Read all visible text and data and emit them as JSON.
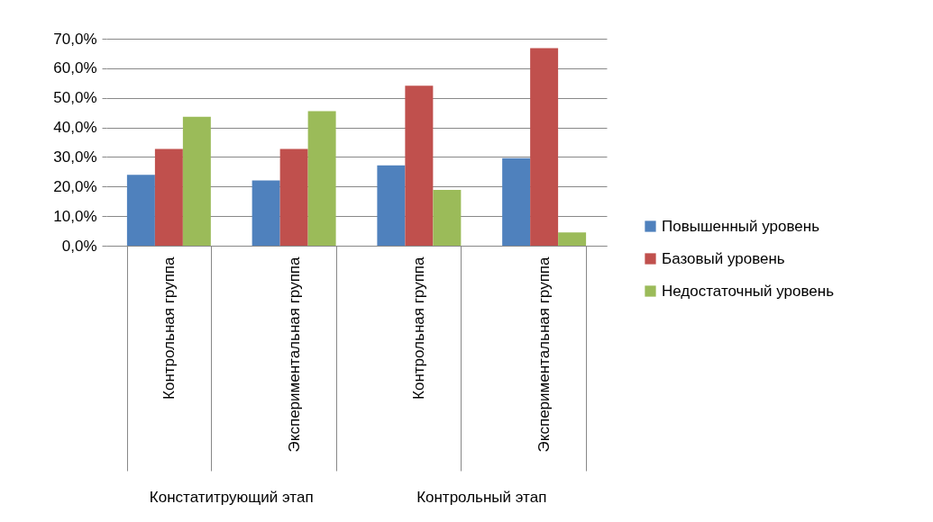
{
  "chart_data": {
    "type": "bar",
    "categories": [
      "Контрольная группа",
      "Экспериментальная группа",
      "Контрольная группа",
      "Экспериментальная группа"
    ],
    "series": [
      {
        "name": "Повышенный уровень",
        "color": "#4f81bd",
        "values": [
          24.0,
          22.1,
          27.2,
          29.6
        ]
      },
      {
        "name": "Базовый уровень",
        "color": "#c0504d",
        "values": [
          32.7,
          32.7,
          54.1,
          66.8
        ]
      },
      {
        "name": "Недостаточный уровень",
        "color": "#9bbb59",
        "values": [
          43.6,
          45.5,
          18.9,
          4.5
        ]
      }
    ],
    "ylim": [
      0,
      70
    ],
    "yticks": [
      {
        "value": 0,
        "label": "0,0%"
      },
      {
        "value": 10,
        "label": "10,0%"
      },
      {
        "value": 20,
        "label": "20,0%"
      },
      {
        "value": 30,
        "label": "30,0%"
      },
      {
        "value": 40,
        "label": "40,0%"
      },
      {
        "value": 50,
        "label": "50,0%"
      },
      {
        "value": 60,
        "label": "60,0%"
      },
      {
        "value": 70,
        "label": "70,0%"
      }
    ],
    "grid": "y",
    "legend": "right",
    "annotations": [
      "Констатитрующий этап",
      "Контрольный этап"
    ]
  }
}
